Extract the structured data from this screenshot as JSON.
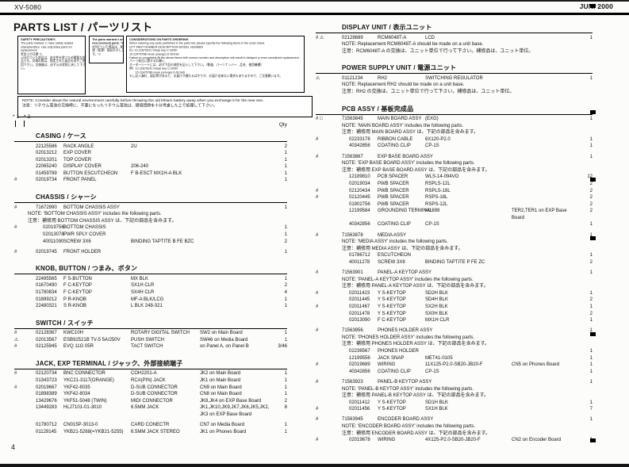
{
  "header": {
    "model": "XV-5080",
    "date": "JUN. 2000"
  },
  "title": "PARTS LIST / パーツリスト",
  "page_number": "4",
  "legend": {
    "marks": "*1 *2",
    "qty_label": "Qty"
  },
  "boxes": {
    "safety": {
      "lines": [
        "SAFETY PRECAUTION*1",
        "The parts marked ⚠ have safety related characteristics. Use only listed parts for replacement.",
        "安全上の注意 *1",
        "⚠印のついた部品は、安全性を保つため重要な部品です。交換の際は、指定された部品を必ずご使用下さい。交換後は、必ず元の状態に戻して下さい。"
      ]
    },
    "hash": {
      "lines": [
        "The parts marked # are new (revised) parts. *2",
        "#印のついた部品は、新規（変更）部品を示します。*2"
      ]
    },
    "ordering": {
      "lines": [
        "CONSIDERATIONS ON PARTS ORDERING",
        "When ordering any parts published in the parts list, please specify the following items in the order sheet.",
        "QTY    PART NUMBER    DESCRIPTION    MODEL NUMBER",
        "Ex:  10    22675241    Sharp key    C-20/50",
        "       15    22475788    Hook (orange)    D-5C/HD",
        "Failure to completely fill the above items with correct number and description will result in delayed or even unrealized replacement.",
        "パーツ発注に関するお願い",
        "オーダーシートには、必ず下記の項目を記入して下さい。（数量、パーツナンバー、品名、使用機種）",
        "例）10    22675241    Sharp key    C-20/50",
        "　　15    22475788    Hook (orange)    D-5C/HD",
        "もし記入漏れ、誤記等があると、お届けが遅れるばかりか、お届け出来ない場合もありますので、ご注意願います。"
      ]
    },
    "note": {
      "lines": [
        "NOTE: Consider about the natural environment carefully before throwing the old lithium battery away when you exchange it for the new one.",
        "注意：リチウム電池の交換時に、不要になったリチウム電池は、環境問題を十分考慮した上で処理して下さい。"
      ]
    }
  },
  "left_sections": [
    {
      "title": "CASING / ケース",
      "rows": [
        {
          "p": "22125586",
          "d": "RACK ANGLE",
          "s": "2U",
          "q": "2"
        },
        {
          "p": "02013212",
          "d": "EXP COVER",
          "q": "1"
        },
        {
          "p": "02013201",
          "d": "TOP COVER",
          "q": "1"
        },
        {
          "p": "22065240",
          "d": "DISPLAY COVER",
          "s": "206-240",
          "q": "1"
        },
        {
          "p": "01459789",
          "d": "BUTTON ESCUTCHEON",
          "s": "F B-ESCT MX1H-A BLK",
          "q": "1"
        },
        {
          "m": "#",
          "p": "02019734",
          "d": "FRONT PANEL",
          "q": "1"
        }
      ]
    },
    {
      "title": "CHASSIS / シャーシ",
      "rows": [
        {
          "m": "#",
          "p": "71672990",
          "d": "BOTTOM CHASSIS ASSY",
          "q": "1"
        },
        {
          "note": "NOTE: 'BOTTOM CHASSIS ASSY' includes the following parts."
        },
        {
          "note": "注意：補修用 BOTTOM CHASSIS ASSY は、下記の部品を含みます。"
        },
        {
          "m": "#",
          "ind": true,
          "p": "02019756",
          "d": "BOTTOM CHASSIS",
          "q": "1"
        },
        {
          "ind": true,
          "p": "02013078",
          "d": "PWR SPLY COVER",
          "q": "1"
        },
        {
          "ind": true,
          "p": "40011090",
          "d": "SCREW 3X6",
          "s": "BINDING TAPTITE B FE BZC",
          "q": "2"
        },
        {
          "gap": true
        },
        {
          "m": "#",
          "p": "02019745",
          "d": "FRONT HOLDER",
          "q": "1"
        }
      ]
    },
    {
      "title": "KNOB, BUTTON / つまみ、ボタン",
      "rows": [
        {
          "p": "22495565",
          "d": "F S-BUTTON",
          "s": "MX BLK",
          "q": "1"
        },
        {
          "p": "01670490",
          "d": "F C-KEYTOP",
          "s": "SX1H CLR",
          "q": "2"
        },
        {
          "p": "01780834",
          "d": "F C-KEYTOP",
          "s": "SX4H CLR",
          "q": "4"
        },
        {
          "p": "01899212",
          "d": "P R-KNOB",
          "s": "MF-A BLK/LCG",
          "q": "1"
        },
        {
          "p": "22480321",
          "d": "S R-KNOB",
          "s": "L BLK 248-321",
          "q": "1"
        }
      ]
    },
    {
      "title": "SWITCH / スイッチ",
      "rows": [
        {
          "m": "#",
          "p": "02128367",
          "d": "KWC10H",
          "s": "ROTARY DIGITAL SWITCH",
          "l": "SW2 on Main Board",
          "q": "1"
        },
        {
          "m": "⚠",
          "p": "02013567",
          "d": "ESB92521B TV-5 5A/250V",
          "s": "PUSH SWITCH",
          "l": "SW46 on Media Board",
          "q": "1"
        },
        {
          "m": "#",
          "p": "02125945",
          "d": "EVQ 11G 05R",
          "s": "TACT SWITCH",
          "l": "on Panel A, on Panel B",
          "q": "3/46"
        }
      ]
    },
    {
      "title": "JACK, EXP TERMINAL / ジャック、外部接続端子",
      "rows": [
        {
          "m": "#",
          "p": "02120734",
          "d": "BNC CONNECTOR",
          "s": "COH2201-A",
          "l": "JK2 on Main Board",
          "q": "1"
        },
        {
          "p": "01343723",
          "d": "YKC21-3117(ORANGE)",
          "s": "RCA(PIN) JACK",
          "l": "JK1 on Main Board",
          "q": "1"
        },
        {
          "m": "#",
          "p": "02019667",
          "d": "YKF42-8035",
          "s": "D-SUB CONNECTOR",
          "l": "CN9 on Main Board",
          "q": "1"
        },
        {
          "p": "01898389",
          "d": "YKF42-8034",
          "s": "D-SUB CONNECTOR",
          "l": "CN8 on Main Board",
          "q": "1"
        },
        {
          "p": "13429676",
          "d": "YKF51-5048 (TWIN)",
          "s": "MIDI CONNECTOR",
          "l": "JK8,JK4 on EXP Base Board",
          "q": "2"
        },
        {
          "p": "13449283",
          "d": "HLJ7101-01-3010",
          "s": "6.5MM JACK",
          "l": "JK1,JK10,JK9,JK7,JK6,JK5,JK2, JK3 on EXP Base Board",
          "q": "8"
        },
        {
          "gap": true
        },
        {
          "p": "01780712",
          "d": "CN015P-3013-0",
          "s": "CARD CONECTR",
          "l": "CN7 on Media Board",
          "q": "1"
        },
        {
          "p": "01129145",
          "d": "YKB21-5268(=YKB21-5255)",
          "s": "6.5MM JACK STEREO",
          "l": "JK1 on Phones Board",
          "q": "1"
        }
      ]
    }
  ],
  "right_sections": [
    {
      "title": "DISPLAY UNIT / 表示ユニット",
      "rows": [
        {
          "m": "# ⚠",
          "p": "02128689",
          "d": "RCM6048T-A",
          "s": "LCD",
          "q": "1"
        },
        {
          "note": "NOTE: Replacement RCM6048T-A should be made on a unit base."
        },
        {
          "note": "注意：RCM6048T-A の交換は、ユニット単位で行って下さい。補修品は、ユニット単位。"
        }
      ]
    },
    {
      "title": "POWER SUPPLY UNIT / 電源ユニット",
      "rows": [
        {
          "m": "⚠",
          "p": "01121234",
          "d": "RH2",
          "s": "SWITCHING REGULATOR",
          "q": "1"
        },
        {
          "note": "NOTE: Replacement RH2 should be made on a unit base."
        },
        {
          "note": "注意：RH2 の交換は、ユニット単位で行って下さい。補修品は、ユニット単位。"
        }
      ]
    },
    {
      "title": "PCB ASSY / 基板完成品",
      "rows": [
        {
          "m": "# □",
          "p": "71563845",
          "d": "MAIN BOARD ASSY",
          "s": "(EXG)",
          "q": "1"
        },
        {
          "note": "NOTE: 'MAIN BOARD ASSY' includes the following parts."
        },
        {
          "note": "注意：補修用 MAIN BOARD ASSY は、下記の部品を含みます。"
        },
        {
          "m": "#",
          "ind": true,
          "p": "02233178",
          "d": "RIBBON CABLE",
          "s": "6X120-P2.0",
          "q": "1"
        },
        {
          "ind": true,
          "p": "40342856",
          "d": "COATING CLIP",
          "s": "CP-1S",
          "q": "1"
        },
        {
          "gap": true
        },
        {
          "m": "#",
          "p": "71563867",
          "d": "EXP BASE BOARD ASSY",
          "q": "1"
        },
        {
          "note": "NOTE: 'EXP BASE BOARD ASSY' includes the following parts."
        },
        {
          "note": "注意：補修用 EXP BASE BOARD ASSY は、下記の部品を含みます。"
        },
        {
          "ind": true,
          "p": "12189810",
          "d": "PCB SPACER",
          "s": "WLS-14-094VO",
          "q": "12"
        },
        {
          "ind": true,
          "p": "02019034",
          "d": "PWB SPACER",
          "s": "RSPLS-12L",
          "q": "2"
        },
        {
          "m": "#",
          "ind": true,
          "p": "02120434",
          "d": "PWB SPACER",
          "s": "RSPLS-18L",
          "q": "2"
        },
        {
          "m": "#",
          "ind": true,
          "p": "02120445",
          "d": "PWB SPACER",
          "s": "RSPS-18L",
          "q": "2"
        },
        {
          "ind": true,
          "p": "01902756",
          "d": "PWB SPACER",
          "s": "RSPS-12L",
          "q": "2"
        },
        {
          "ind": true,
          "p": "12199584",
          "d": "GROUNDING TERMINAL",
          "s": "M1698",
          "l": "TER2,TER1 on EXP Base Board",
          "q": "2"
        },
        {
          "ind": true,
          "p": "40342856",
          "d": "COATING CLIP",
          "s": "CP-1S",
          "q": "1"
        },
        {
          "gap": true
        },
        {
          "m": "#",
          "p": "71563878",
          "d": "MEDIA ASSY",
          "q": "1"
        },
        {
          "note": "NOTE: 'MEDIA ASSY' includes the following parts."
        },
        {
          "note": "注意：補修用 MEDIA ASSY は、下記の部品を含みます。"
        },
        {
          "ind": true,
          "p": "01786712",
          "d": "ESCUTCHEON",
          "q": "1"
        },
        {
          "ind": true,
          "p": "40011278",
          "d": "SCREW 3X8",
          "s": "BINDING TAPTITE P FE ZC",
          "q": "2"
        },
        {
          "gap": true
        },
        {
          "m": "#",
          "p": "71563901",
          "d": "PANEL-A KEYTOP ASSY",
          "q": "1"
        },
        {
          "note": "NOTE: 'PANEL-A KEYTOP ASSY' includes the following parts."
        },
        {
          "note": "注意：補修用 PANEL-A KEYTOP ASSY は、下記の部品を含みます。"
        },
        {
          "m": "#",
          "ind": true,
          "p": "02011423",
          "d": "Y S-KEYTOP",
          "s": "SD2H BLK",
          "q": "1"
        },
        {
          "ind": true,
          "p": "02011445",
          "d": "Y S-KEYTOP",
          "s": "SD4H BLK",
          "q": "2"
        },
        {
          "m": "#",
          "ind": true,
          "p": "02011467",
          "d": "Y S-KEYTOP",
          "s": "SX2H BLK",
          "q": "1"
        },
        {
          "ind": true,
          "p": "02011478",
          "d": "Y S-KEYTOP",
          "s": "SX0H BLK",
          "q": "2"
        },
        {
          "ind": true,
          "p": "02013090",
          "d": "F C-KEYTOP",
          "s": "MX1H CLR",
          "q": "1"
        },
        {
          "gap": true
        },
        {
          "m": "#",
          "p": "71563956",
          "d": "PHONES HOLDER ASSY",
          "q": "1"
        },
        {
          "note": "NOTE: 'PHONES HOLDER ASSY' includes the following parts."
        },
        {
          "note": "注意：補修用 PHONES HOLDER ASSY は、下記の部品を含みます。"
        },
        {
          "ind": true,
          "p": "02236567",
          "d": "PHONES HOLDER",
          "q": "1"
        },
        {
          "ind": true,
          "p": "12199556",
          "d": "JACK SNAP",
          "s": "MET41-0105",
          "q": "1"
        },
        {
          "m": "#",
          "ind": true,
          "p": "02019689",
          "d": "WIRING",
          "s": "11X125-P2.0-SB20-JB20-F",
          "l": "CN5 on Phones Board",
          "q": "1"
        },
        {
          "ind": true,
          "p": "40342856",
          "d": "COATING CLIP",
          "s": "CP-1S",
          "q": "1"
        },
        {
          "gap": true
        },
        {
          "m": "#",
          "p": "71563923",
          "d": "PANEL-B KEYTOP ASSY",
          "q": "1"
        },
        {
          "note": "NOTE: 'PANEL-B KEYTOP ASSY' includes the following parts."
        },
        {
          "note": "注意：補修用 PANEL-B KEYTOP ASSY は、下記の部品を含みます。"
        },
        {
          "ind": true,
          "p": "02011412",
          "d": "Y S-KEYTOP",
          "s": "SD1H BLK",
          "q": "1"
        },
        {
          "m": "#",
          "ind": true,
          "p": "02011456",
          "d": "Y S-KEYTOP",
          "s": "SX1H BLK",
          "q": "7"
        },
        {
          "gap": true
        },
        {
          "m": "#",
          "p": "71563945",
          "d": "ENCODER BOARD ASSY",
          "q": "1"
        },
        {
          "note": "NOTE: 'ENCODER BOARD ASSY' includes the following parts."
        },
        {
          "note": "注意：補修用 ENCODER BOARD ASSY は、下記の部品を含みます。"
        },
        {
          "m": "#",
          "ind": true,
          "p": "02019678",
          "d": "WIRING",
          "s": "4X125-P2.0-SB20-JB20-F",
          "l": "CN2 on Encoder Board",
          "q": "1"
        }
      ]
    }
  ]
}
